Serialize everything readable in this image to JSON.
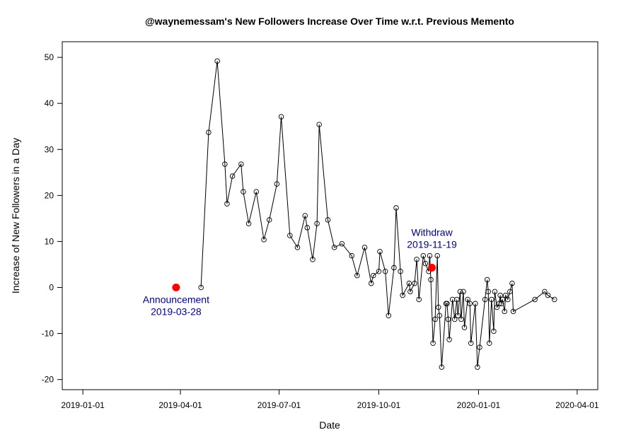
{
  "chart_data": {
    "type": "line",
    "title": "@waynemessam's New Followers Increase Over Time w.r.t. Previous Memento",
    "xlabel": "Date",
    "ylabel": "Increase of New Followers in a Day",
    "x_ticks": [
      "2019-01-01",
      "2019-04-01",
      "2019-07-01",
      "2019-10-01",
      "2020-01-01",
      "2020-04-01"
    ],
    "y_ticks": [
      -20,
      -10,
      0,
      10,
      20,
      30,
      40,
      50
    ],
    "xlim": [
      "2018-12-13",
      "2020-04-20"
    ],
    "ylim": [
      -22.2,
      53.4
    ],
    "grid": false,
    "series": [
      {
        "marker": "open-circle",
        "line_color": "#000000",
        "points": [
          [
            "2019-04-20",
            0
          ],
          [
            "2019-04-27",
            33.7
          ],
          [
            "2019-05-05",
            49.2
          ],
          [
            "2019-05-12",
            26.8
          ],
          [
            "2019-05-14",
            18.2
          ],
          [
            "2019-05-19",
            24.2
          ],
          [
            "2019-05-27",
            26.8
          ],
          [
            "2019-05-29",
            20.8
          ],
          [
            "2019-06-03",
            13.9
          ],
          [
            "2019-06-10",
            20.8
          ],
          [
            "2019-06-17",
            10.4
          ],
          [
            "2019-06-22",
            14.7
          ],
          [
            "2019-06-29",
            22.5
          ],
          [
            "2019-07-03",
            37.1
          ],
          [
            "2019-07-11",
            11.3
          ],
          [
            "2019-07-18",
            8.7
          ],
          [
            "2019-07-25",
            15.6
          ],
          [
            "2019-07-27",
            13.0
          ],
          [
            "2019-08-01",
            6.1
          ],
          [
            "2019-08-05",
            13.9
          ],
          [
            "2019-08-07",
            35.4
          ],
          [
            "2019-08-15",
            14.7
          ],
          [
            "2019-08-21",
            8.7
          ],
          [
            "2019-08-28",
            9.5
          ],
          [
            "2019-09-06",
            6.9
          ],
          [
            "2019-09-11",
            2.6
          ],
          [
            "2019-09-18",
            8.7
          ],
          [
            "2019-09-24",
            0.9
          ],
          [
            "2019-09-26",
            2.6
          ],
          [
            "2019-10-01",
            3.5
          ],
          [
            "2019-10-02",
            7.8
          ],
          [
            "2019-10-07",
            3.5
          ],
          [
            "2019-10-10",
            -6.1
          ],
          [
            "2019-10-15",
            4.3
          ],
          [
            "2019-10-17",
            17.3
          ],
          [
            "2019-10-21",
            3.5
          ],
          [
            "2019-10-23",
            -1.7
          ],
          [
            "2019-10-29",
            0.9
          ],
          [
            "2019-10-30",
            -0.9
          ],
          [
            "2019-11-03",
            0.9
          ],
          [
            "2019-11-05",
            6.1
          ],
          [
            "2019-11-07",
            -2.6
          ],
          [
            "2019-11-11",
            6.9
          ],
          [
            "2019-11-13",
            5.2
          ],
          [
            "2019-11-16",
            3.5
          ],
          [
            "2019-11-17",
            6.9
          ],
          [
            "2019-11-18",
            1.7
          ],
          [
            "2019-11-20",
            -12.1
          ],
          [
            "2019-11-22",
            -6.9
          ],
          [
            "2019-11-24",
            6.9
          ],
          [
            "2019-11-25",
            -4.3
          ],
          [
            "2019-11-26",
            -6.1
          ],
          [
            "2019-11-28",
            -17.3
          ],
          [
            "2019-12-02",
            -3.5
          ],
          [
            "2019-12-03",
            -3.5
          ],
          [
            "2019-12-04",
            -6.9
          ],
          [
            "2019-12-05",
            -11.3
          ],
          [
            "2019-12-08",
            -2.6
          ],
          [
            "2019-12-10",
            -6.9
          ],
          [
            "2019-12-12",
            -2.6
          ],
          [
            "2019-12-13",
            -6.1
          ],
          [
            "2019-12-15",
            -0.9
          ],
          [
            "2019-12-16",
            -6.9
          ],
          [
            "2019-12-18",
            -0.9
          ],
          [
            "2019-12-19",
            -8.7
          ],
          [
            "2019-12-22",
            -2.6
          ],
          [
            "2019-12-24",
            -3.5
          ],
          [
            "2019-12-25",
            -12.1
          ],
          [
            "2019-12-29",
            -3.5
          ],
          [
            "2019-12-31",
            -17.3
          ],
          [
            "2020-01-02",
            -13.0
          ],
          [
            "2020-01-07",
            -2.6
          ],
          [
            "2020-01-09",
            1.7
          ],
          [
            "2020-01-10",
            -0.9
          ],
          [
            "2020-01-11",
            -12.1
          ],
          [
            "2020-01-13",
            -2.6
          ],
          [
            "2020-01-15",
            -9.5
          ],
          [
            "2020-01-16",
            -0.9
          ],
          [
            "2020-01-18",
            -4.3
          ],
          [
            "2020-01-20",
            -3.5
          ],
          [
            "2020-01-21",
            -1.7
          ],
          [
            "2020-01-22",
            -3.5
          ],
          [
            "2020-01-23",
            -2.6
          ],
          [
            "2020-01-25",
            -5.2
          ],
          [
            "2020-01-26",
            -1.7
          ],
          [
            "2020-01-28",
            -2.6
          ],
          [
            "2020-01-30",
            -0.9
          ],
          [
            "2020-02-01",
            0.9
          ],
          [
            "2020-02-02",
            -5.2
          ],
          [
            "2020-02-22",
            -2.6
          ],
          [
            "2020-03-02",
            -0.9
          ],
          [
            "2020-03-05",
            -1.7
          ],
          [
            "2020-03-11",
            -2.6
          ]
        ]
      }
    ],
    "highlight_points": [
      {
        "x": "2019-03-28",
        "y": 0,
        "color": "#ff0000",
        "label_line1": "Announcement",
        "label_line2": "2019-03-28",
        "label_position": "below"
      },
      {
        "x": "2019-11-19",
        "y": 4.3,
        "color": "#ff0000",
        "label_line1": "Withdraw",
        "label_line2": "2019-11-19",
        "label_position": "above"
      }
    ],
    "annotation_color": "#000080"
  }
}
